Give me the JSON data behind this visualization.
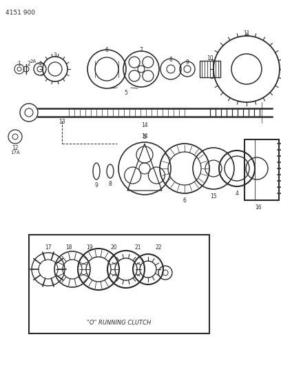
{
  "title_text": "4151 900",
  "bg_color": "#ffffff",
  "line_color": "#2a2a2a",
  "box_label": "\"O\" RUNNING CLUTCH"
}
